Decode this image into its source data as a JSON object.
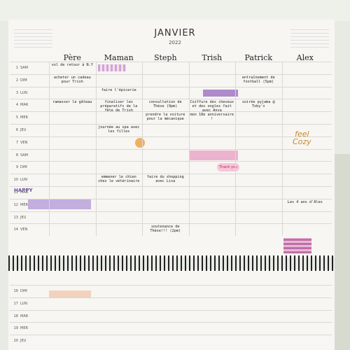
{
  "header": {
    "title": "JANVIER",
    "year": "2022"
  },
  "columns": [
    "Père",
    "Maman",
    "Steph",
    "Trish",
    "Patrick",
    "Alex"
  ],
  "rows": [
    {
      "day": "1",
      "weekday": "SAM",
      "cells": [
        "vol de retour à N.Y",
        null,
        null,
        null,
        null,
        null
      ]
    },
    {
      "day": "2",
      "weekday": "DIM",
      "cells": [
        "acheter un cadeau pour Trish",
        null,
        null,
        null,
        "entraînement de football (5pm)",
        null
      ]
    },
    {
      "day": "3",
      "weekday": "LUN",
      "cells": [
        null,
        "faire l'épicerie",
        null,
        null,
        null,
        null
      ]
    },
    {
      "day": "4",
      "weekday": "MAR",
      "cells": [
        "ramasser le gâteau",
        "finaliser les préparatifs de la fête de Trish",
        "consultation de Thèse (9pm)",
        "Coiffure des cheveux et des ongles fait avec Anya",
        "soirée pyjama @ Toby's",
        null
      ]
    },
    {
      "day": "5",
      "weekday": "MER",
      "cells": [
        null,
        null,
        "prendre la voiture pour la mécanique",
        "mon 18e anniversaire !",
        null,
        null
      ]
    },
    {
      "day": "6",
      "weekday": "JEU",
      "cells": [
        null,
        "journée au spa avec les filles",
        null,
        null,
        null,
        null
      ]
    },
    {
      "day": "7",
      "weekday": "VEN",
      "cells": [
        null,
        null,
        null,
        null,
        null,
        null
      ]
    },
    {
      "day": "8",
      "weekday": "SAM",
      "cells": [
        null,
        null,
        null,
        null,
        null,
        null
      ]
    },
    {
      "day": "9",
      "weekday": "DIM",
      "cells": [
        null,
        null,
        null,
        null,
        null,
        null
      ]
    },
    {
      "day": "10",
      "weekday": "LUN",
      "cells": [
        null,
        "emmener le chien chez le vétérinaire",
        "faire du shopping avec Lisa",
        null,
        null,
        null
      ]
    },
    {
      "day": "11",
      "weekday": "MAR",
      "cells": [
        null,
        null,
        null,
        null,
        null,
        null
      ]
    },
    {
      "day": "12",
      "weekday": "MER",
      "cells": [
        null,
        null,
        null,
        null,
        null,
        "Les 4 ans d'Alex"
      ]
    },
    {
      "day": "13",
      "weekday": "JEU",
      "cells": [
        null,
        null,
        null,
        null,
        null,
        null
      ]
    },
    {
      "day": "14",
      "weekday": "VEN",
      "cells": [
        null,
        null,
        "soutenance de Thèse!!! (2pm)",
        null,
        null,
        null
      ]
    }
  ],
  "lower_rows": [
    {
      "day": "16",
      "weekday": "DIM"
    },
    {
      "day": "17",
      "weekday": "LUN"
    },
    {
      "day": "18",
      "weekday": "MAR"
    },
    {
      "day": "19",
      "weekday": "MER"
    },
    {
      "day": "20",
      "weekday": "JEU"
    }
  ],
  "stickers": {
    "cozy_top": "feel",
    "cozy_bottom": "Cozy",
    "happy": "HAPPY",
    "thanks": "Thank you"
  }
}
